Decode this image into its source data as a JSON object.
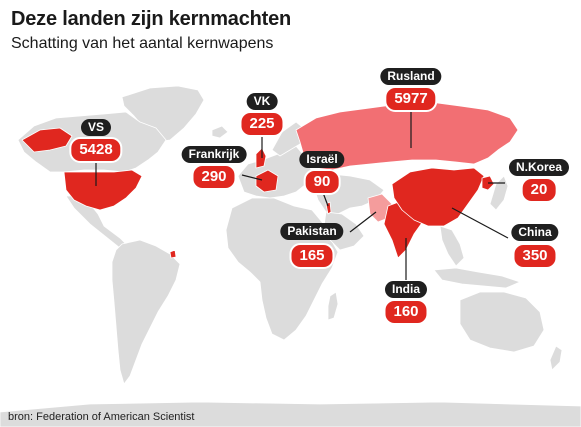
{
  "title": "Deze landen zijn kernmachten",
  "subtitle": "Schatting van het aantal kernwapens",
  "source": "bron: Federation of American Scientist",
  "colors": {
    "land": "#dcdcdc",
    "nuclear_state": "#e0271f",
    "russia": "#f26f73",
    "pakistan": "#f49c9c",
    "label_dark": "#1f1f1f",
    "value_red": "#e0271f"
  },
  "countries": [
    {
      "name": "Rusland",
      "value": "5977"
    },
    {
      "name": "VS",
      "value": "5428"
    },
    {
      "name": "VK",
      "value": "225"
    },
    {
      "name": "Frankrijk",
      "value": "290"
    },
    {
      "name": "Israël",
      "value": "90"
    },
    {
      "name": "N.Korea",
      "value": "20"
    },
    {
      "name": "Pakistan",
      "value": "165"
    },
    {
      "name": "China",
      "value": "350"
    },
    {
      "name": "India",
      "value": "160"
    }
  ]
}
